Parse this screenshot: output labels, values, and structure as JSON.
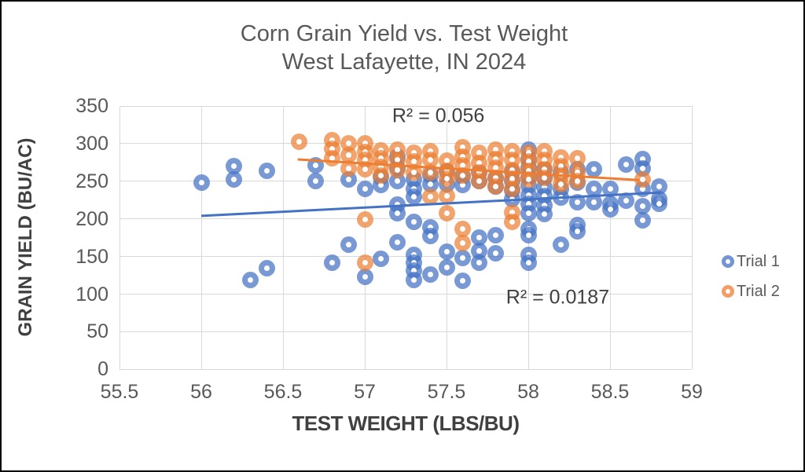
{
  "chart_data": {
    "type": "scatter",
    "title": "Corn Grain Yield vs. Test Weight",
    "subtitle": "West Lafayette, IN 2024",
    "xlabel": "TEST WEIGHT (LBS/BU)",
    "ylabel": "GRAIN YIELD (BU/AC)",
    "xlim": [
      55.5,
      59
    ],
    "ylim": [
      0,
      350
    ],
    "x_ticks": [
      55.5,
      56,
      56.5,
      57,
      57.5,
      58,
      58.5,
      59
    ],
    "y_ticks": [
      0,
      50,
      100,
      150,
      200,
      250,
      300,
      350
    ],
    "grid": true,
    "legend_position": "right",
    "colors": {
      "grid": "#d9d9d9",
      "title_text": "#595959",
      "tick_text": "#595959",
      "axis_title_text": "#404040"
    },
    "series": [
      {
        "name": "Trial 1",
        "color": "#4472C4",
        "marker_alpha": 0.72,
        "trendline": {
          "x1": 56.0,
          "y1": 204,
          "x2": 58.81,
          "y2": 235
        },
        "r2_text": "R² = 0.0187",
        "points": [
          [
            56.0,
            248
          ],
          [
            56.2,
            270
          ],
          [
            56.2,
            252
          ],
          [
            56.3,
            119
          ],
          [
            56.4,
            264
          ],
          [
            56.4,
            134
          ],
          [
            56.7,
            271
          ],
          [
            56.7,
            250
          ],
          [
            56.8,
            142
          ],
          [
            56.9,
            252
          ],
          [
            56.9,
            166
          ],
          [
            57.0,
            240
          ],
          [
            57.0,
            123
          ],
          [
            57.1,
            256
          ],
          [
            57.1,
            245
          ],
          [
            57.1,
            147
          ],
          [
            57.2,
            283
          ],
          [
            57.2,
            268
          ],
          [
            57.2,
            250
          ],
          [
            57.2,
            219
          ],
          [
            57.2,
            207
          ],
          [
            57.2,
            169
          ],
          [
            57.3,
            252
          ],
          [
            57.3,
            240
          ],
          [
            57.3,
            229
          ],
          [
            57.3,
            196
          ],
          [
            57.3,
            152
          ],
          [
            57.3,
            142
          ],
          [
            57.3,
            131
          ],
          [
            57.3,
            119
          ],
          [
            57.4,
            258
          ],
          [
            57.4,
            246
          ],
          [
            57.4,
            189
          ],
          [
            57.4,
            177
          ],
          [
            57.4,
            126
          ],
          [
            57.5,
            263
          ],
          [
            57.5,
            246
          ],
          [
            57.5,
            156
          ],
          [
            57.5,
            135
          ],
          [
            57.6,
            257
          ],
          [
            57.6,
            245
          ],
          [
            57.6,
            148
          ],
          [
            57.6,
            118
          ],
          [
            57.7,
            262
          ],
          [
            57.7,
            250
          ],
          [
            57.7,
            175
          ],
          [
            57.7,
            157
          ],
          [
            57.7,
            142
          ],
          [
            57.8,
            255
          ],
          [
            57.8,
            243
          ],
          [
            57.8,
            178
          ],
          [
            57.8,
            154
          ],
          [
            57.9,
            263
          ],
          [
            57.9,
            250
          ],
          [
            57.9,
            238
          ],
          [
            57.9,
            226
          ],
          [
            58.0,
            292
          ],
          [
            58.0,
            280
          ],
          [
            58.0,
            268
          ],
          [
            58.0,
            256
          ],
          [
            58.0,
            244
          ],
          [
            58.0,
            232
          ],
          [
            58.0,
            220
          ],
          [
            58.0,
            208
          ],
          [
            58.0,
            187
          ],
          [
            58.0,
            178
          ],
          [
            58.0,
            152
          ],
          [
            58.0,
            142
          ],
          [
            58.1,
            266
          ],
          [
            58.1,
            254
          ],
          [
            58.1,
            242
          ],
          [
            58.1,
            230
          ],
          [
            58.1,
            218
          ],
          [
            58.1,
            206
          ],
          [
            58.2,
            262
          ],
          [
            58.2,
            240
          ],
          [
            58.2,
            228
          ],
          [
            58.2,
            166
          ],
          [
            58.3,
            266
          ],
          [
            58.3,
            248
          ],
          [
            58.3,
            222
          ],
          [
            58.3,
            192
          ],
          [
            58.3,
            184
          ],
          [
            58.4,
            266
          ],
          [
            58.4,
            240
          ],
          [
            58.4,
            222
          ],
          [
            58.5,
            240
          ],
          [
            58.5,
            220
          ],
          [
            58.5,
            213
          ],
          [
            58.6,
            272
          ],
          [
            58.6,
            224
          ],
          [
            58.7,
            280
          ],
          [
            58.7,
            267
          ],
          [
            58.7,
            240
          ],
          [
            58.7,
            217
          ],
          [
            58.7,
            198
          ],
          [
            58.8,
            243
          ],
          [
            58.8,
            226
          ],
          [
            58.8,
            220
          ]
        ]
      },
      {
        "name": "Trial 2",
        "color": "#ED7D31",
        "marker_alpha": 0.7,
        "trendline": {
          "x1": 56.59,
          "y1": 279,
          "x2": 58.68,
          "y2": 251.5
        },
        "r2_text": "R² = 0.056",
        "points": [
          [
            56.6,
            302
          ],
          [
            56.8,
            305
          ],
          [
            56.8,
            293
          ],
          [
            56.8,
            281
          ],
          [
            56.9,
            300
          ],
          [
            56.9,
            285
          ],
          [
            56.9,
            267
          ],
          [
            57.0,
            300
          ],
          [
            57.0,
            289
          ],
          [
            57.0,
            278
          ],
          [
            57.0,
            266
          ],
          [
            57.0,
            199
          ],
          [
            57.0,
            142
          ],
          [
            57.1,
            291
          ],
          [
            57.1,
            281
          ],
          [
            57.1,
            269
          ],
          [
            57.1,
            258
          ],
          [
            57.2,
            292
          ],
          [
            57.2,
            278
          ],
          [
            57.2,
            265
          ],
          [
            57.3,
            288
          ],
          [
            57.3,
            276
          ],
          [
            57.3,
            262
          ],
          [
            57.4,
            290
          ],
          [
            57.4,
            278
          ],
          [
            57.4,
            262
          ],
          [
            57.4,
            229
          ],
          [
            57.5,
            277
          ],
          [
            57.5,
            264
          ],
          [
            57.5,
            253
          ],
          [
            57.5,
            230
          ],
          [
            57.5,
            208
          ],
          [
            57.6,
            295
          ],
          [
            57.6,
            283
          ],
          [
            57.6,
            271
          ],
          [
            57.6,
            258
          ],
          [
            57.6,
            187
          ],
          [
            57.6,
            168
          ],
          [
            57.7,
            288
          ],
          [
            57.7,
            274
          ],
          [
            57.7,
            262
          ],
          [
            57.7,
            250
          ],
          [
            57.8,
            292
          ],
          [
            57.8,
            280
          ],
          [
            57.8,
            268
          ],
          [
            57.8,
            255
          ],
          [
            57.8,
            243
          ],
          [
            57.9,
            290
          ],
          [
            57.9,
            278
          ],
          [
            57.9,
            265
          ],
          [
            57.9,
            253
          ],
          [
            57.9,
            240
          ],
          [
            57.9,
            209
          ],
          [
            57.9,
            196
          ],
          [
            58.0,
            288
          ],
          [
            58.0,
            276
          ],
          [
            58.0,
            264
          ],
          [
            58.0,
            252
          ],
          [
            58.1,
            290
          ],
          [
            58.1,
            278
          ],
          [
            58.1,
            266
          ],
          [
            58.1,
            254
          ],
          [
            58.2,
            282
          ],
          [
            58.2,
            270
          ],
          [
            58.2,
            258
          ],
          [
            58.2,
            246
          ],
          [
            58.3,
            281
          ],
          [
            58.3,
            262
          ],
          [
            58.3,
            250
          ],
          [
            58.7,
            252
          ]
        ]
      }
    ],
    "annotations": [
      {
        "text": "R² = 0.056",
        "x": 57.45,
        "y": 336
      },
      {
        "text": "R² = 0.0187",
        "x": 58.18,
        "y": 95
      }
    ],
    "legend": {
      "items": [
        {
          "label": "Trial 1",
          "color": "#4472C4"
        },
        {
          "label": "Trial 2",
          "color": "#ED7D31"
        }
      ]
    }
  }
}
